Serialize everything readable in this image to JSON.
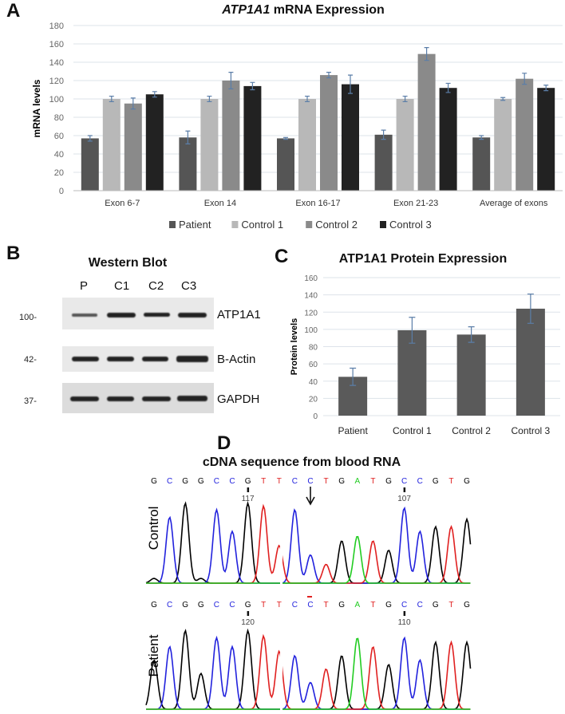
{
  "panels": {
    "a": "A",
    "b": "B",
    "c": "C",
    "d": "D"
  },
  "chart_data": [
    {
      "type": "bar",
      "title_italic": "ATP1A1",
      "title_rest": " mRNA Expression",
      "ylabel": "mRNA levels",
      "xlabel": "",
      "ylim": [
        0,
        180
      ],
      "yticks": [
        0,
        20,
        40,
        60,
        80,
        100,
        120,
        140,
        160,
        180
      ],
      "grid": true,
      "legend": "bottom",
      "categories": [
        "Exon 6-7",
        "Exon 14",
        "Exon 16-17",
        "Exon 21-23",
        "Average of exons"
      ],
      "series": [
        {
          "name": "Patient",
          "color": "#555555",
          "values": [
            57,
            58,
            57,
            61,
            58
          ],
          "errors": [
            3,
            7,
            1,
            5,
            2
          ]
        },
        {
          "name": "Control 1",
          "color": "#b8b8b8",
          "values": [
            100,
            100,
            100,
            100,
            100
          ],
          "errors": [
            3,
            3,
            3,
            3,
            1.5
          ]
        },
        {
          "name": "Control 2",
          "color": "#8a8a8a",
          "values": [
            95,
            120,
            126,
            149,
            122
          ],
          "errors": [
            6,
            9,
            3,
            7,
            6
          ]
        },
        {
          "name": "Control 3",
          "color": "#222222",
          "values": [
            105,
            114,
            116,
            112,
            112
          ],
          "errors": [
            3,
            4,
            10,
            5,
            3
          ]
        }
      ]
    },
    {
      "type": "bar",
      "title": "ATP1A1 Protein Expression",
      "ylabel": "Protein levels",
      "xlabel": "",
      "ylim": [
        0,
        160
      ],
      "yticks": [
        0,
        20,
        40,
        60,
        80,
        100,
        120,
        140,
        160
      ],
      "grid": true,
      "categories": [
        "Patient",
        "Control 1",
        "Control 2",
        "Control 3"
      ],
      "values": [
        45,
        99,
        94,
        124
      ],
      "errors": [
        10,
        15,
        9,
        17
      ],
      "color": "#5a5a5a"
    }
  ],
  "western_blot": {
    "title": "Western Blot",
    "lanes": [
      "P",
      "C1",
      "C2",
      "C3"
    ],
    "rows": [
      {
        "marker": "100-",
        "label": "ATP1A1"
      },
      {
        "marker": "42-",
        "label": "B-Actin"
      },
      {
        "marker": "37-",
        "label": "GAPDH"
      }
    ]
  },
  "sequencing": {
    "title": "cDNA sequence from blood RNA",
    "base_colors": {
      "G": "#000000",
      "C": "#2222dd",
      "T": "#e02020",
      "A": "#22cc22"
    },
    "control": {
      "label": "Control",
      "sequence": "GCGGCCGTTCCTGATGCCGTG",
      "positions": [
        "117",
        "107"
      ]
    },
    "patient": {
      "label": "Patient",
      "sequence": "GCGGCCGTTCCTGATGCCGTG",
      "positions": [
        "120",
        "110"
      ]
    }
  }
}
